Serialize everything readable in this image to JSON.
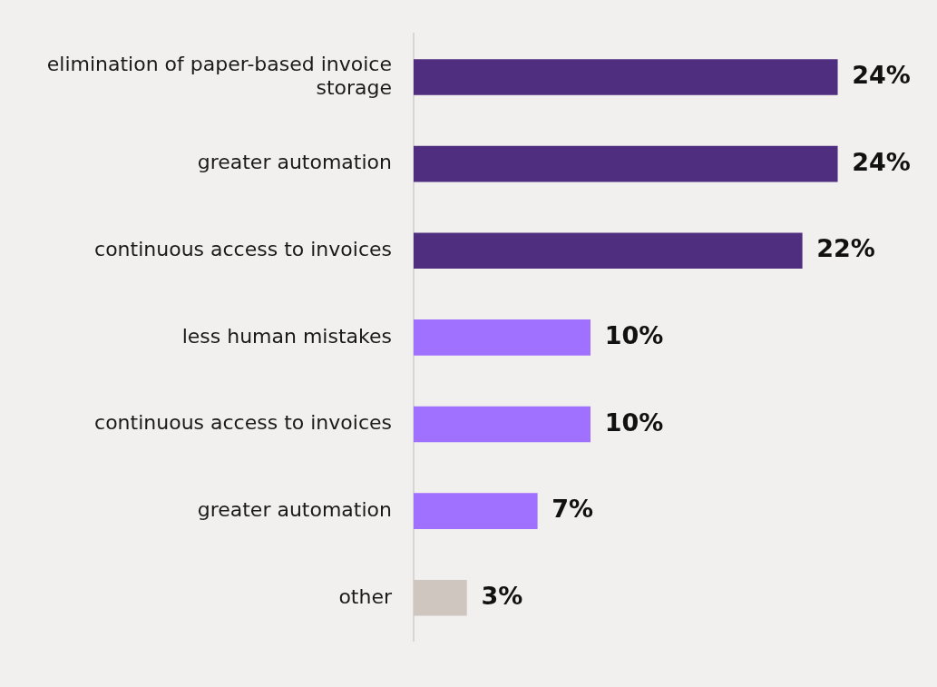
{
  "chart_data": {
    "type": "bar",
    "orientation": "horizontal",
    "categories": [
      "elimination of paper-based invoice storage",
      "greater automation",
      "continuous access to invoices",
      "less human mistakes",
      "continuous access to invoices",
      "greater automation",
      "other"
    ],
    "values": [
      24,
      24,
      22,
      10,
      10,
      7,
      3
    ],
    "colors": [
      "#4f2d7f",
      "#4f2d7f",
      "#4f2d7f",
      "#a070ff",
      "#a070ff",
      "#a070ff",
      "#cfc6c0"
    ],
    "value_labels": [
      "24%",
      "24%",
      "22%",
      "10%",
      "10%",
      "7%",
      "3%"
    ],
    "grid": false,
    "legend": false
  }
}
